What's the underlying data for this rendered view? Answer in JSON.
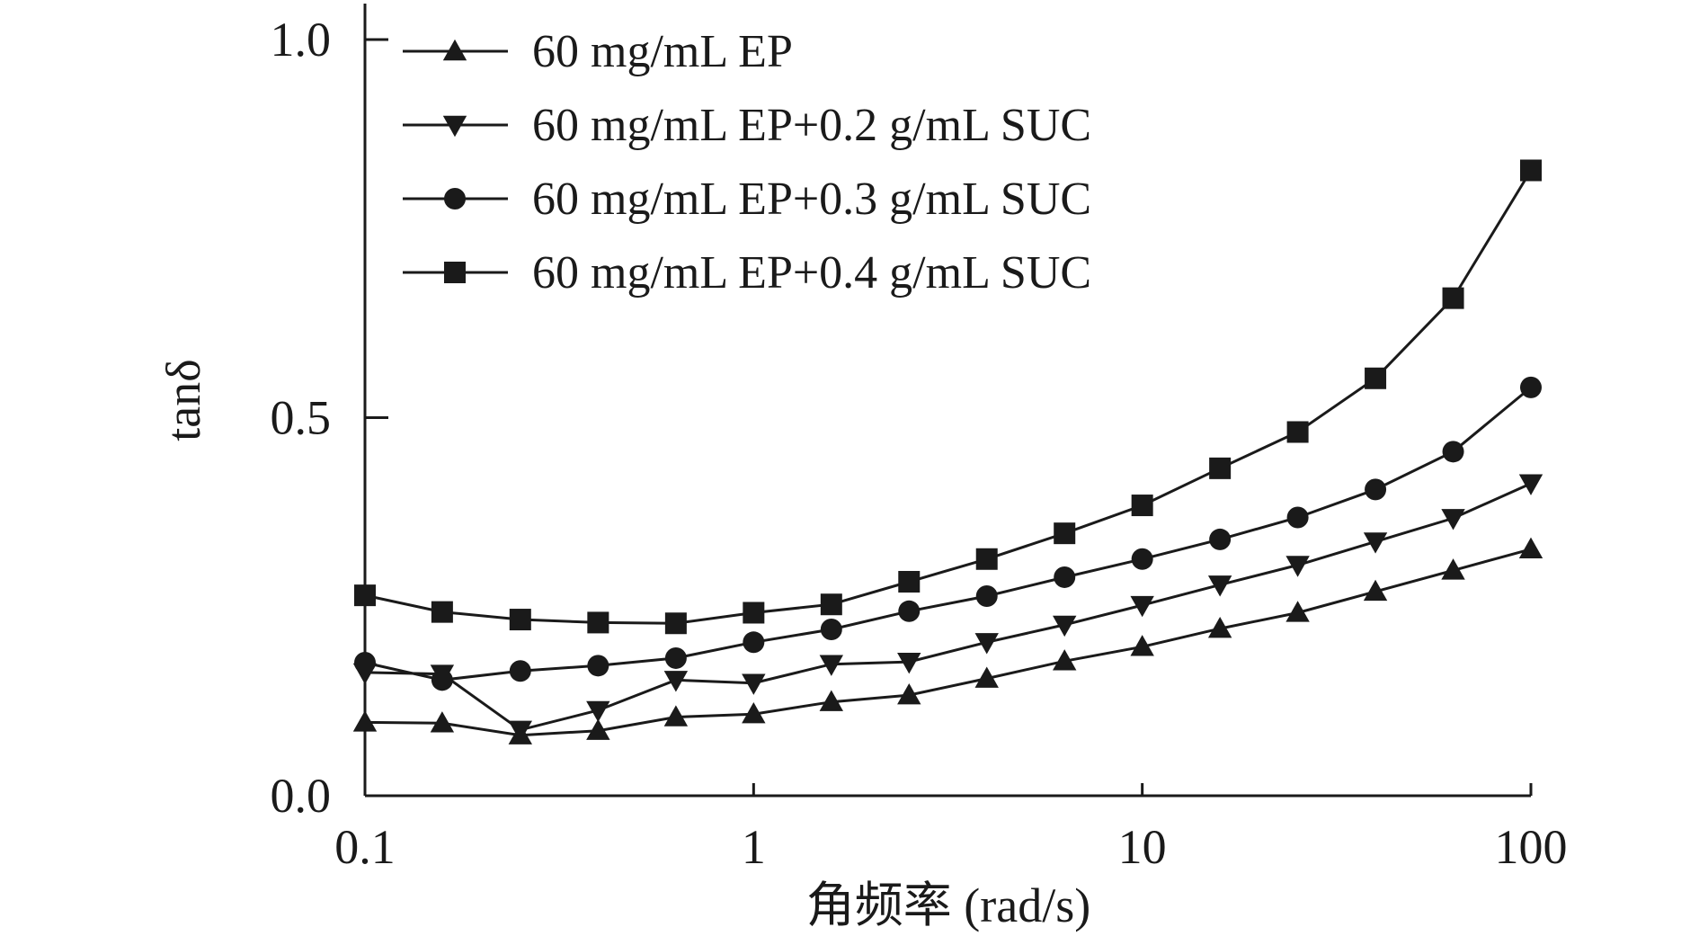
{
  "chart_data": {
    "type": "line",
    "xlabel": "角频率 (rad/s)",
    "ylabel": "tanδ",
    "xscale": "log",
    "xlim": [
      0.1,
      100
    ],
    "ylim": [
      0.0,
      1.0
    ],
    "x_ticks": [
      0.1,
      1,
      10,
      100
    ],
    "x_tick_labels": [
      "0.1",
      "1",
      "10",
      "100"
    ],
    "y_ticks": [
      0.0,
      0.5,
      1.0
    ],
    "y_tick_labels": [
      "0.0",
      "0.5",
      "1.0"
    ],
    "grid": false,
    "legend_position": "top-left",
    "x": [
      0.1,
      0.158,
      0.251,
      0.398,
      0.631,
      1,
      1.585,
      2.512,
      3.981,
      6.31,
      10,
      15.85,
      25.12,
      39.81,
      63.1,
      100
    ],
    "series": [
      {
        "name": "60 mg/mL EP",
        "marker": "triangle-up",
        "values": [
          0.097,
          0.096,
          0.08,
          0.086,
          0.104,
          0.108,
          0.124,
          0.133,
          0.155,
          0.178,
          0.197,
          0.221,
          0.242,
          0.27,
          0.298,
          0.326
        ]
      },
      {
        "name": "60 mg/mL EP+0.2 g/mL SUC",
        "marker": "triangle-down",
        "values": [
          0.163,
          0.161,
          0.087,
          0.113,
          0.153,
          0.149,
          0.174,
          0.177,
          0.203,
          0.226,
          0.252,
          0.279,
          0.305,
          0.336,
          0.367,
          0.413
        ]
      },
      {
        "name": "60 mg/mL EP+0.3 g/mL SUC",
        "marker": "circle",
        "values": [
          0.176,
          0.153,
          0.165,
          0.172,
          0.182,
          0.203,
          0.22,
          0.244,
          0.264,
          0.289,
          0.313,
          0.339,
          0.368,
          0.405,
          0.455,
          0.54
        ]
      },
      {
        "name": "60 mg/mL EP+0.4 g/mL SUC",
        "marker": "square",
        "values": [
          0.265,
          0.243,
          0.233,
          0.229,
          0.228,
          0.242,
          0.253,
          0.283,
          0.313,
          0.347,
          0.384,
          0.433,
          0.481,
          0.552,
          0.658,
          0.827
        ]
      }
    ]
  }
}
